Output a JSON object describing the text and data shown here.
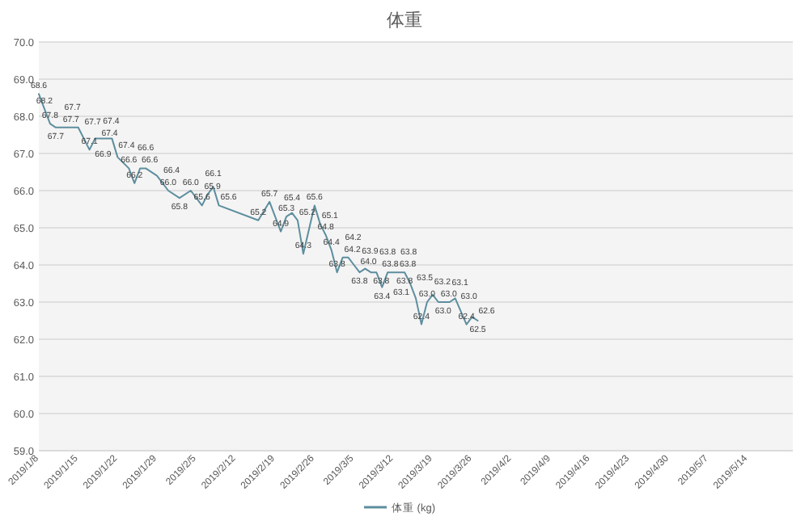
{
  "chart_data": {
    "type": "line",
    "title": "体重",
    "legend": "bottom",
    "grid": "y",
    "marker": "none",
    "line_style": "solid",
    "xlim": [
      "2019-01-08",
      "2019-05-22"
    ],
    "xticks": [
      {
        "value": "2019-01-08",
        "label": "2019/1/8"
      },
      {
        "value": "2019-01-15",
        "label": "2019/1/15"
      },
      {
        "value": "2019-01-22",
        "label": "2019/1/22"
      },
      {
        "value": "2019-01-29",
        "label": "2019/1/29"
      },
      {
        "value": "2019-02-05",
        "label": "2019/2/5"
      },
      {
        "value": "2019-02-12",
        "label": "2019/2/12"
      },
      {
        "value": "2019-02-19",
        "label": "2019/2/19"
      },
      {
        "value": "2019-02-26",
        "label": "2019/2/26"
      },
      {
        "value": "2019-03-05",
        "label": "2019/3/5"
      },
      {
        "value": "2019-03-12",
        "label": "2019/3/12"
      },
      {
        "value": "2019-03-19",
        "label": "2019/3/19"
      },
      {
        "value": "2019-03-26",
        "label": "2019/3/26"
      },
      {
        "value": "2019-04-02",
        "label": "2019/4/2"
      },
      {
        "value": "2019-04-09",
        "label": "2019/4/9"
      },
      {
        "value": "2019-04-16",
        "label": "2019/4/16"
      },
      {
        "value": "2019-04-23",
        "label": "2019/4/23"
      },
      {
        "value": "2019-04-30",
        "label": "2019/4/30"
      },
      {
        "value": "2019-05-07",
        "label": "2019/5/7"
      },
      {
        "value": "2019-05-14",
        "label": "2019/5/14"
      }
    ],
    "ylim": [
      59,
      70
    ],
    "yticks": [
      {
        "value": 59,
        "label": "59.0"
      },
      {
        "value": 60,
        "label": "60.0"
      },
      {
        "value": 61,
        "label": "61.0"
      },
      {
        "value": 62,
        "label": "62.0"
      },
      {
        "value": 63,
        "label": "63.0"
      },
      {
        "value": 64,
        "label": "64.0"
      },
      {
        "value": 65,
        "label": "65.0"
      },
      {
        "value": 66,
        "label": "66.0"
      },
      {
        "value": 67,
        "label": "67.0"
      },
      {
        "value": 68,
        "label": "68.0"
      },
      {
        "value": 69,
        "label": "69.0"
      },
      {
        "value": 70,
        "label": "70.0"
      }
    ],
    "series": [
      {
        "name": "体重 (kg)",
        "color": "#5d8e9e",
        "x": [
          "2019-01-08",
          "2019-01-09",
          "2019-01-10",
          "2019-01-11",
          "2019-01-12",
          "2019-01-14",
          "2019-01-15",
          "2019-01-17",
          "2019-01-18",
          "2019-01-20",
          "2019-01-21",
          "2019-01-22",
          "2019-01-24",
          "2019-01-25",
          "2019-01-26",
          "2019-01-27",
          "2019-01-29",
          "2019-01-31",
          "2019-02-02",
          "2019-02-04",
          "2019-02-06",
          "2019-02-07",
          "2019-02-08",
          "2019-02-09",
          "2019-02-16",
          "2019-02-18",
          "2019-02-20",
          "2019-02-21",
          "2019-02-22",
          "2019-02-23",
          "2019-02-24",
          "2019-02-26",
          "2019-02-27",
          "2019-02-28",
          "2019-03-01",
          "2019-03-02",
          "2019-03-03",
          "2019-03-04",
          "2019-03-05",
          "2019-03-06",
          "2019-03-07",
          "2019-03-08",
          "2019-03-09",
          "2019-03-10",
          "2019-03-11",
          "2019-03-12",
          "2019-03-13",
          "2019-03-14",
          "2019-03-15",
          "2019-03-16",
          "2019-03-17",
          "2019-03-18",
          "2019-03-19",
          "2019-03-20",
          "2019-03-21",
          "2019-03-22",
          "2019-03-23",
          "2019-03-25",
          "2019-03-26",
          "2019-03-27"
        ],
        "values": [
          68.6,
          68.2,
          67.8,
          67.7,
          67.7,
          67.7,
          67.7,
          67.1,
          67.4,
          67.4,
          67.4,
          66.9,
          66.6,
          66.2,
          66.6,
          66.6,
          66.4,
          66.0,
          65.8,
          66.0,
          65.6,
          65.9,
          66.1,
          65.6,
          65.2,
          65.7,
          64.9,
          65.3,
          65.4,
          65.2,
          64.3,
          65.6,
          65.1,
          64.8,
          64.4,
          63.8,
          64.2,
          64.2,
          64.0,
          63.8,
          63.9,
          63.8,
          63.8,
          63.4,
          63.8,
          63.8,
          63.8,
          63.8,
          63.5,
          63.1,
          62.4,
          63.0,
          63.2,
          63.0,
          63.0,
          63.0,
          63.1,
          62.4,
          62.6,
          62.5
        ],
        "value_labels": [
          "68.6",
          "68.2",
          "67.8",
          "67.7",
          "67.7",
          "67.7",
          "67.7",
          "67.1",
          "67.4",
          "67.4",
          "67.4",
          "66.9",
          "66.6",
          "66.2",
          "66.6",
          "66.6",
          "66.4",
          "66.0",
          "65.8",
          "66.0",
          "65.6",
          "65.9",
          "66.1",
          "65.6",
          "65.2",
          "65.7",
          "64.9",
          "65.3",
          "65.4",
          "65.2",
          "64.3",
          "65.6",
          "65.1",
          "64.8",
          "64.4",
          "63.8",
          "64.2",
          "64.2",
          "64.0",
          "63.8",
          "63.9",
          "63.8",
          "63.8",
          "63.4",
          "63.8",
          "63.8",
          "63.8",
          "63.8",
          "63.5",
          "63.1",
          "62.4",
          "63.0",
          "63.2",
          "63.0",
          "63.0",
          "63.0",
          "63.1",
          "62.4",
          "62.6",
          "62.5"
        ]
      }
    ]
  }
}
